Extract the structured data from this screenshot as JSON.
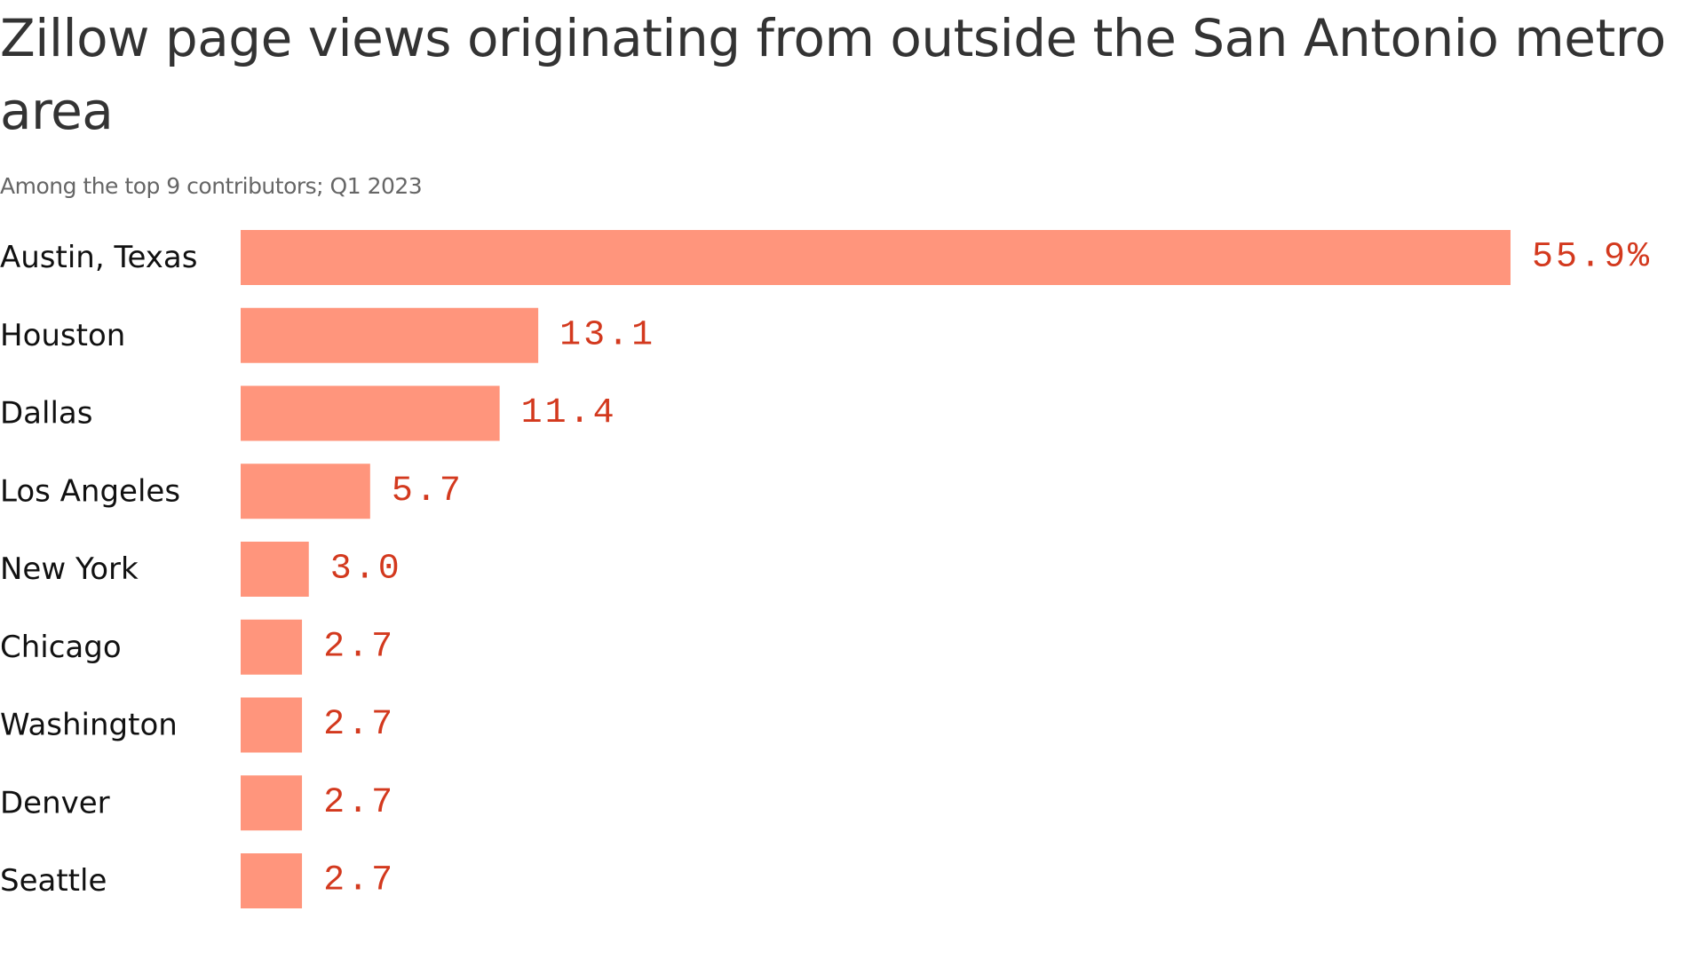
{
  "chart_data": {
    "type": "bar",
    "orientation": "horizontal",
    "title": "Zillow page views originating from outside the San Antonio metro area",
    "subtitle": "Among the top 9 contributors; Q1 2023",
    "categories": [
      "Austin, Texas",
      "Houston",
      "Dallas",
      "Los Angeles",
      "New York",
      "Chicago",
      "Washington",
      "Denver",
      "Seattle"
    ],
    "values": [
      55.9,
      13.1,
      11.4,
      5.7,
      3.0,
      2.7,
      2.7,
      2.7,
      2.7
    ],
    "value_labels": [
      "55.9%",
      "13.1",
      "11.4",
      "5.7",
      "3.0",
      "2.7",
      "2.7",
      "2.7",
      "2.7"
    ],
    "unit": "%",
    "bar_color": "#ff957c",
    "label_color": "#d3391e",
    "grid": false,
    "legend": "none"
  }
}
